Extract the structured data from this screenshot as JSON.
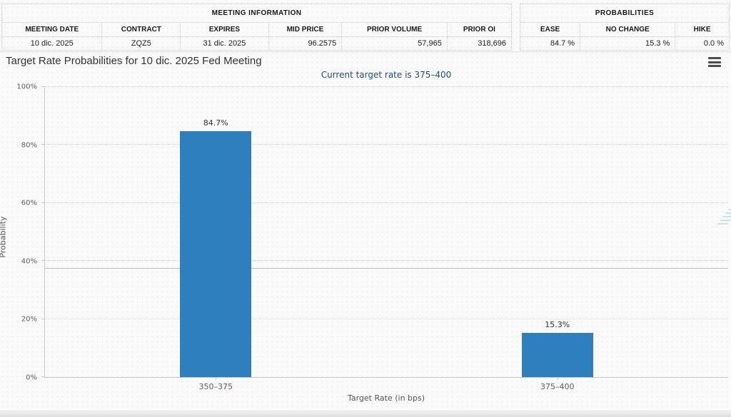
{
  "meeting_information": {
    "title": "MEETING INFORMATION",
    "columns": [
      "MEETING DATE",
      "CONTRACT",
      "EXPIRES",
      "MID PRICE",
      "PRIOR VOLUME",
      "PRIOR OI"
    ],
    "values": [
      "10 dic. 2025",
      "ZQZ5",
      "31 dic. 2025",
      "96.2575",
      "57,965",
      "318,696"
    ]
  },
  "probabilities": {
    "title": "PROBABILITIES",
    "columns": [
      "EASE",
      "NO CHANGE",
      "HIKE"
    ],
    "values": [
      "84.7 %",
      "15.3 %",
      "0.0 %"
    ]
  },
  "chart_data": {
    "type": "bar",
    "title": "Target Rate Probabilities for 10 dic. 2025 Fed Meeting",
    "subtitle": "Current target rate is 375–400",
    "categories": [
      "350–375",
      "375–400"
    ],
    "values": [
      84.7,
      15.3
    ],
    "value_labels": [
      "84.7%",
      "15.3%"
    ],
    "xlabel": "Target Rate (in bps)",
    "ylabel": "Probability",
    "ylim": [
      0,
      100
    ],
    "ytick_labels": [
      "0%",
      "20%",
      "40%",
      "60%",
      "80%",
      "100%"
    ],
    "plot_line_value": 37.3,
    "bar_color": "#2d80bd",
    "grid": "dotted-horizontal",
    "legend": "none"
  },
  "icons": {
    "menu": "hamburger-menu",
    "watermark_letter": "Q"
  }
}
